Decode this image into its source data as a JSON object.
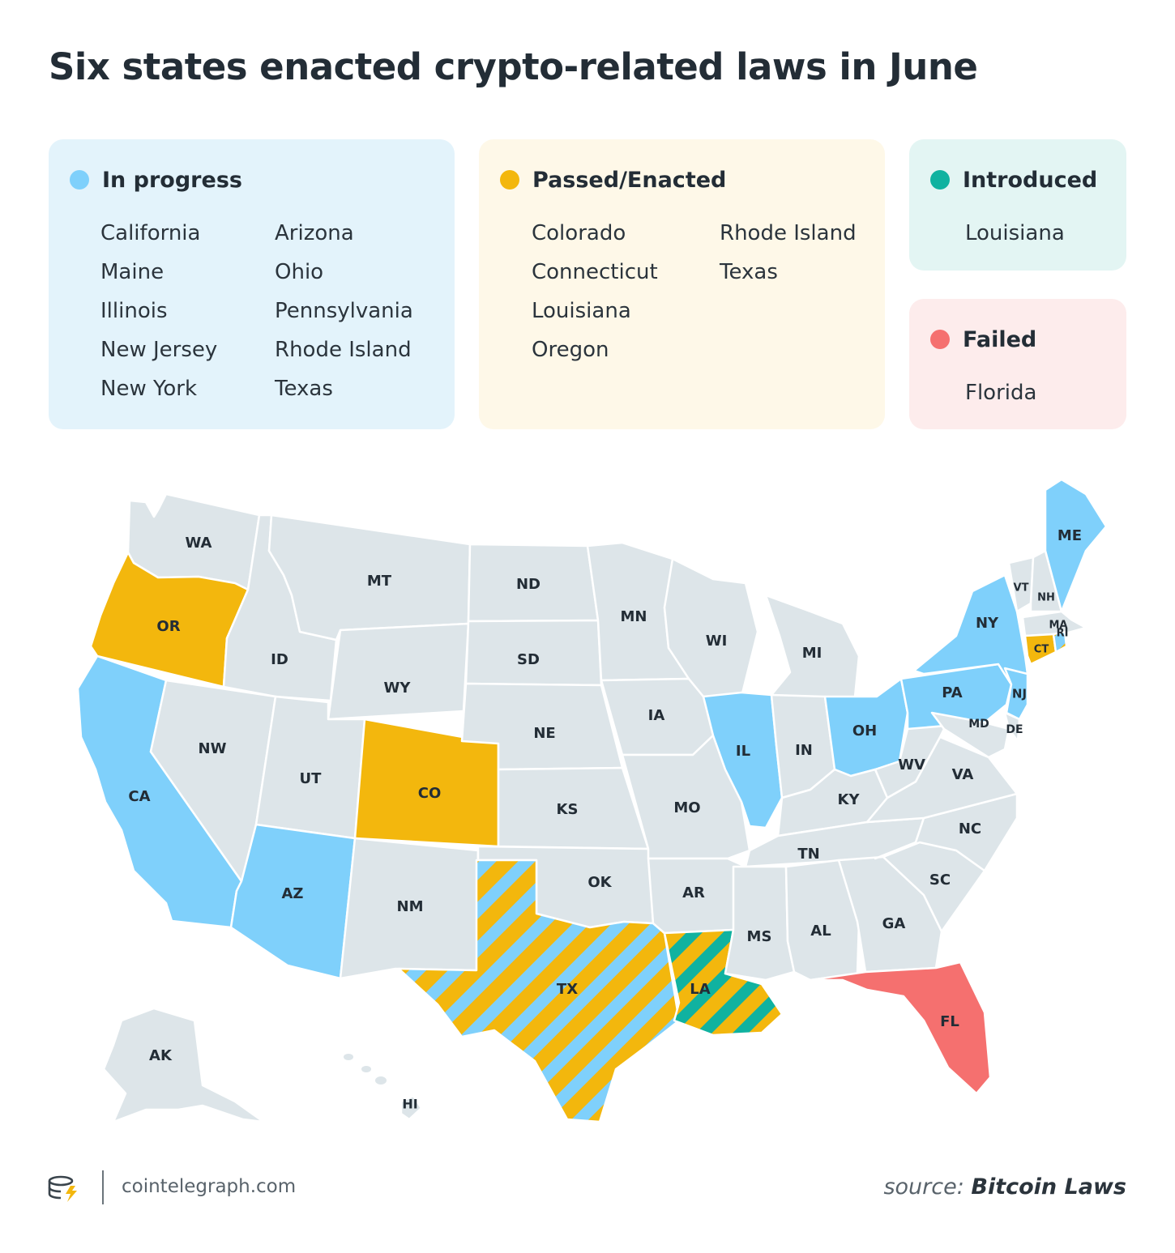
{
  "title": "Six states enacted crypto-related laws in June",
  "colors": {
    "in_progress": "#7fd0fb",
    "passed": "#f3b70d",
    "introduced": "#10b2a0",
    "failed": "#f5706f",
    "neutral": "#dde5e9"
  },
  "legend": {
    "in_progress": {
      "label": "In progress",
      "col1": [
        "California",
        "Maine",
        "Illinois",
        "New Jersey",
        "New York"
      ],
      "col2": [
        "Arizona",
        "Ohio",
        "Pennsylvania",
        "Rhode Island",
        "Texas"
      ]
    },
    "passed": {
      "label": "Passed/Enacted",
      "col1": [
        "Colorado",
        "Connecticut",
        "Louisiana",
        "Oregon"
      ],
      "col2": [
        "Rhode Island",
        "Texas"
      ]
    },
    "introduced": {
      "label": "Introduced",
      "col1": [
        "Louisiana"
      ]
    },
    "failed": {
      "label": "Failed",
      "col1": [
        "Florida"
      ]
    }
  },
  "map": {
    "states": [
      {
        "abbr": "WA",
        "status": "none"
      },
      {
        "abbr": "OR",
        "status": "passed"
      },
      {
        "abbr": "CA",
        "status": "in_progress"
      },
      {
        "abbr": "ID",
        "status": "none"
      },
      {
        "abbr": "NW",
        "status": "none"
      },
      {
        "abbr": "MT",
        "status": "none"
      },
      {
        "abbr": "WY",
        "status": "none"
      },
      {
        "abbr": "UT",
        "status": "none"
      },
      {
        "abbr": "AZ",
        "status": "in_progress"
      },
      {
        "abbr": "CO",
        "status": "passed"
      },
      {
        "abbr": "NM",
        "status": "none"
      },
      {
        "abbr": "ND",
        "status": "none"
      },
      {
        "abbr": "SD",
        "status": "none"
      },
      {
        "abbr": "NE",
        "status": "none"
      },
      {
        "abbr": "KS",
        "status": "none"
      },
      {
        "abbr": "OK",
        "status": "none"
      },
      {
        "abbr": "TX",
        "status": "in_progress+passed"
      },
      {
        "abbr": "MN",
        "status": "none"
      },
      {
        "abbr": "IA",
        "status": "none"
      },
      {
        "abbr": "MO",
        "status": "none"
      },
      {
        "abbr": "AR",
        "status": "none"
      },
      {
        "abbr": "LA",
        "status": "passed+introduced"
      },
      {
        "abbr": "WI",
        "status": "none"
      },
      {
        "abbr": "IL",
        "status": "in_progress"
      },
      {
        "abbr": "MI",
        "status": "none"
      },
      {
        "abbr": "IN",
        "status": "none"
      },
      {
        "abbr": "OH",
        "status": "in_progress"
      },
      {
        "abbr": "KY",
        "status": "none"
      },
      {
        "abbr": "TN",
        "status": "none"
      },
      {
        "abbr": "MS",
        "status": "none"
      },
      {
        "abbr": "AL",
        "status": "none"
      },
      {
        "abbr": "GA",
        "status": "none"
      },
      {
        "abbr": "FL",
        "status": "failed"
      },
      {
        "abbr": "SC",
        "status": "none"
      },
      {
        "abbr": "NC",
        "status": "none"
      },
      {
        "abbr": "VA",
        "status": "none"
      },
      {
        "abbr": "WV",
        "status": "none"
      },
      {
        "abbr": "PA",
        "status": "in_progress"
      },
      {
        "abbr": "NY",
        "status": "in_progress"
      },
      {
        "abbr": "NJ",
        "status": "in_progress"
      },
      {
        "abbr": "MD",
        "status": "none"
      },
      {
        "abbr": "DE",
        "status": "none"
      },
      {
        "abbr": "VT",
        "status": "none"
      },
      {
        "abbr": "NH",
        "status": "none"
      },
      {
        "abbr": "MA",
        "status": "none"
      },
      {
        "abbr": "CT",
        "status": "passed"
      },
      {
        "abbr": "RI",
        "status": "in_progress+passed"
      },
      {
        "abbr": "ME",
        "status": "in_progress"
      },
      {
        "abbr": "AK",
        "status": "none"
      },
      {
        "abbr": "HI",
        "status": "none"
      }
    ]
  },
  "footer": {
    "logo_icon": "cointelegraph-logo-icon",
    "site": "cointelegraph.com",
    "source_prefix": "source: ",
    "source_name": "Bitcoin Laws"
  }
}
